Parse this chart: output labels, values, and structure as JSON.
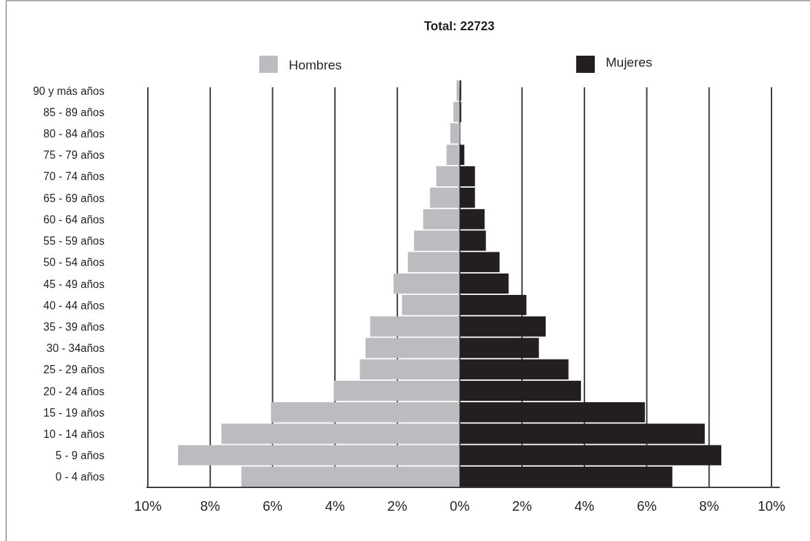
{
  "chart_data": {
    "type": "bar",
    "orientation": "horizontal",
    "title": "Total: 22723",
    "categories": [
      "90 y más años",
      "85 - 89 años",
      "80 - 84 años",
      "75 - 79 años",
      "70 - 74 años",
      "65 - 69 años",
      "60 - 64 años",
      "55 - 59 años",
      "50 - 54 años",
      "45 - 49 años",
      "40 - 44 años",
      "35 - 39 años",
      "30 - 34años",
      "25 - 29 años",
      "20 - 24 años",
      "15 - 19 años",
      "10 - 14 años",
      "5 - 9 años",
      "0 - 4 años"
    ],
    "series": [
      {
        "name": "Hombres",
        "color": "#bbbcbf",
        "values": [
          -0.1,
          -0.2,
          -0.3,
          -0.42,
          -0.75,
          -0.95,
          -1.17,
          -1.46,
          -1.66,
          -2.12,
          -1.85,
          -2.87,
          -3.02,
          -3.2,
          -4.04,
          -6.05,
          -7.64,
          -9.03,
          -7.0
        ]
      },
      {
        "name": "Mujeres",
        "color": "#231f20",
        "values": [
          0.05,
          0.05,
          0.0,
          0.15,
          0.49,
          0.49,
          0.8,
          0.84,
          1.28,
          1.57,
          2.14,
          2.76,
          2.54,
          3.49,
          3.89,
          5.94,
          7.86,
          8.39,
          6.82
        ]
      }
    ],
    "xlim": [
      -10,
      10
    ],
    "xticks": [
      {
        "value": -10,
        "label": "10%"
      },
      {
        "value": -8,
        "label": "8%"
      },
      {
        "value": -6,
        "label": "6%"
      },
      {
        "value": -4,
        "label": "4%"
      },
      {
        "value": -2,
        "label": "2%"
      },
      {
        "value": 0,
        "label": "0%"
      },
      {
        "value": 2,
        "label": "2%"
      },
      {
        "value": 4,
        "label": "4%"
      },
      {
        "value": 6,
        "label": "6%"
      },
      {
        "value": 8,
        "label": "8%"
      },
      {
        "value": 10,
        "label": "10%"
      }
    ],
    "grid": "x",
    "legend": "top",
    "stacked": true
  }
}
